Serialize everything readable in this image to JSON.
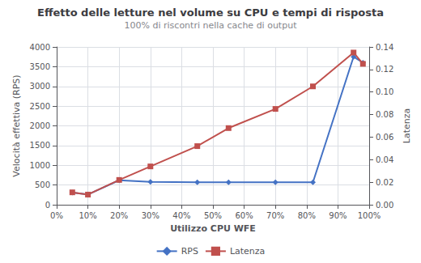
{
  "chart_data": {
    "type": "line",
    "title": "Effetto delle letture nel volume su CPU e tempi di risposta",
    "subtitle": "100% di riscontri nella cache di output",
    "xlabel": "Utilizzo CPU WFE",
    "ylabel": "Velocità effettiva (RPS)",
    "y2label": "Latenza",
    "x": [
      0.05,
      0.1,
      0.2,
      0.3,
      0.45,
      0.55,
      0.7,
      0.82,
      0.95,
      0.98
    ],
    "series": [
      {
        "name": "RPS",
        "color": "#4472C4",
        "marker": "diamond",
        "values": [
          310,
          260,
          620,
          580,
          570,
          570,
          570,
          570,
          3750,
          3600
        ]
      },
      {
        "name": "Latenza",
        "color": "#C0504D",
        "marker": "square",
        "axis": "y2",
        "values": [
          0.011,
          0.009,
          0.022,
          0.034,
          0.052,
          0.068,
          0.085,
          0.105,
          0.135,
          0.125
        ]
      }
    ],
    "xlim": [
      0,
      1.0
    ],
    "xticks": [
      {
        "value": 0,
        "label": "0%"
      },
      {
        "value": 0.1,
        "label": "10%"
      },
      {
        "value": 0.2,
        "label": "20%"
      },
      {
        "value": 0.3,
        "label": "30%"
      },
      {
        "value": 0.4,
        "label": "40%"
      },
      {
        "value": 0.5,
        "label": "50%"
      },
      {
        "value": 0.6,
        "label": "60%"
      },
      {
        "value": 0.7,
        "label": "70%"
      },
      {
        "value": 0.8,
        "label": "80%"
      },
      {
        "value": 0.9,
        "label": "90%"
      },
      {
        "value": 1.0,
        "label": "100%"
      }
    ],
    "ylim": [
      0,
      4000
    ],
    "yticks": [
      0,
      500,
      1000,
      1500,
      2000,
      2500,
      3000,
      3500,
      4000
    ],
    "y2lim": [
      0,
      0.14
    ],
    "y2ticks": [
      {
        "value": 0,
        "label": "0.00"
      },
      {
        "value": 0.02,
        "label": "0.02"
      },
      {
        "value": 0.04,
        "label": "0.04"
      },
      {
        "value": 0.06,
        "label": "0.06"
      },
      {
        "value": 0.08,
        "label": "0.08"
      },
      {
        "value": 0.1,
        "label": "0.10"
      },
      {
        "value": 0.12,
        "label": "0.12"
      },
      {
        "value": 0.14,
        "label": "0.14"
      }
    ],
    "grid": true,
    "legend": "bottom"
  }
}
